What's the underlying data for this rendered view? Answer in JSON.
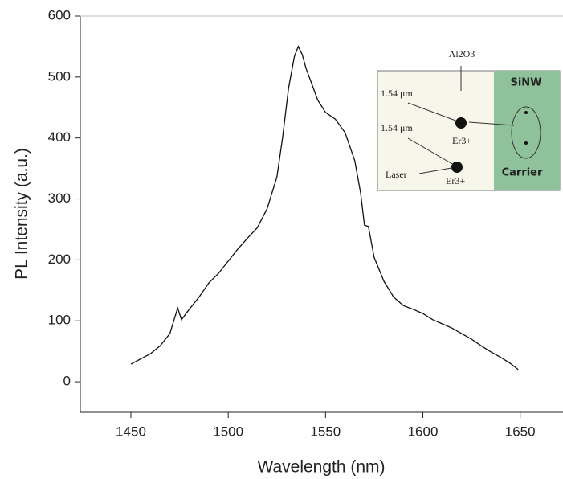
{
  "chart_data": {
    "type": "line",
    "x_label": "Wavelength (nm)",
    "y_label": "PL Intensity (a.u.)",
    "x": [
      1450,
      1460,
      1465,
      1470,
      1474,
      1476,
      1480,
      1485,
      1490,
      1495,
      1500,
      1505,
      1510,
      1515,
      1520,
      1525,
      1528,
      1531,
      1534,
      1536,
      1538,
      1540,
      1543,
      1546,
      1550,
      1555,
      1560,
      1565,
      1568,
      1570,
      1572,
      1575,
      1580,
      1585,
      1590,
      1595,
      1600,
      1605,
      1610,
      1615,
      1620,
      1625,
      1630,
      1635,
      1640,
      1645,
      1649
    ],
    "values": [
      29,
      46,
      59,
      79,
      121,
      102,
      119,
      139,
      162,
      178,
      198,
      218,
      236,
      253,
      284,
      336,
      402,
      482,
      534,
      550,
      537,
      514,
      488,
      462,
      442,
      431,
      409,
      363,
      310,
      257,
      255,
      204,
      165,
      139,
      125,
      119,
      112,
      102,
      95,
      88,
      79,
      70,
      59,
      49,
      40,
      30,
      20
    ],
    "color": "#111111",
    "xlim": [
      1424,
      1672
    ],
    "ylim": [
      -50,
      600
    ],
    "xticks": [
      1450,
      1500,
      1550,
      1600,
      1650
    ],
    "yticks": [
      0,
      100,
      200,
      300,
      400,
      500,
      600
    ],
    "annotations": [
      "Al2O3",
      "SiNW",
      "1.54 μm",
      "1.54 μm",
      "Er3+",
      "Laser",
      "Er3+",
      "Carrier"
    ]
  }
}
